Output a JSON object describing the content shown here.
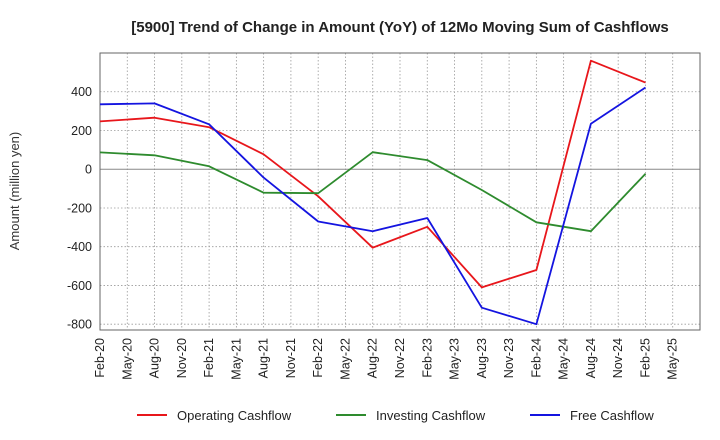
{
  "chart_data": {
    "type": "line",
    "title": "[5900]  Trend of Change in Amount (YoY) of 12Mo Moving Sum of Cashflows",
    "xlabel": "",
    "ylabel": "Amount (million yen)",
    "ylim": [
      -830,
      600
    ],
    "yticks": [
      400,
      200,
      0,
      -200,
      -400,
      -600,
      -800
    ],
    "ytick_labels": [
      "400",
      "200",
      "0",
      "-200",
      "-400",
      "-600",
      "-800"
    ],
    "xtick_labels": [
      "Feb-20",
      "May-20",
      "Aug-20",
      "Nov-20",
      "Feb-21",
      "May-21",
      "Aug-21",
      "Nov-21",
      "Feb-22",
      "May-22",
      "Aug-22",
      "Nov-22",
      "Feb-23",
      "May-23",
      "Aug-23",
      "Nov-23",
      "Feb-24",
      "May-24",
      "Aug-24",
      "Nov-24",
      "Feb-25",
      "May-25"
    ],
    "x": [
      "Feb-20",
      "Aug-20",
      "Feb-21",
      "Aug-21",
      "Feb-22",
      "Aug-22",
      "Feb-23",
      "Aug-23",
      "Feb-24",
      "Aug-24",
      "Feb-25"
    ],
    "grid": true,
    "legend_position": "bottom",
    "series": [
      {
        "name": "Operating Cashflow",
        "color": "#e8161b",
        "values": [
          247,
          266,
          217,
          77,
          -140,
          -405,
          -297,
          -610,
          -520,
          560,
          447
        ]
      },
      {
        "name": "Investing Cashflow",
        "color": "#2e8b2e",
        "values": [
          87,
          72,
          15,
          -121,
          -124,
          88,
          47,
          -107,
          -274,
          -320,
          -23
        ]
      },
      {
        "name": "Free Cashflow",
        "color": "#1414e0",
        "values": [
          335,
          340,
          232,
          -43,
          -270,
          -320,
          -252,
          -715,
          -800,
          235,
          422
        ]
      }
    ]
  }
}
